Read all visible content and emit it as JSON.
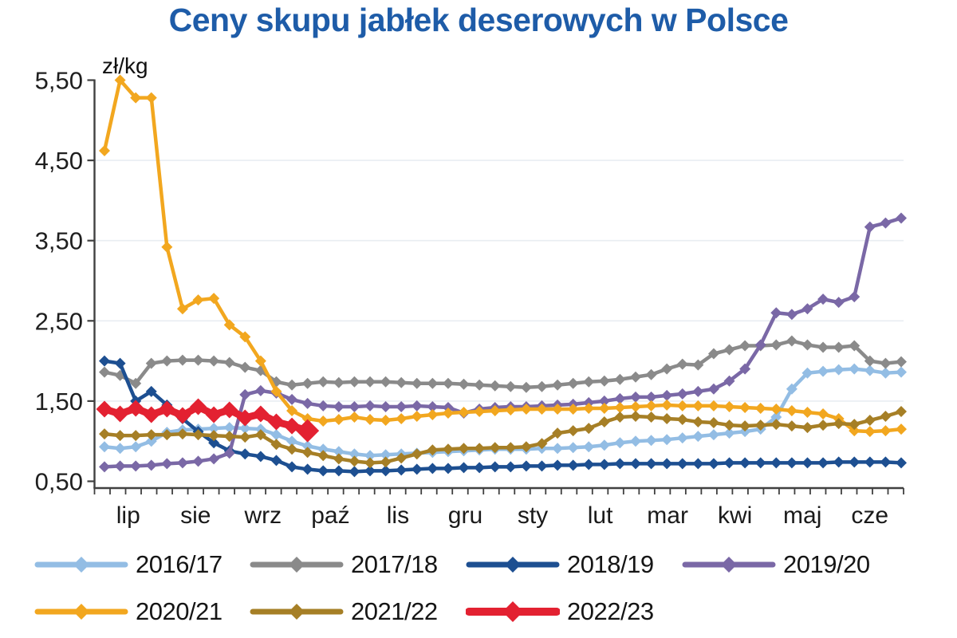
{
  "chart": {
    "title": "Ceny skupu jabłek deserowych w Polsce",
    "unit_label": "zł/kg"
  },
  "chart_data": {
    "type": "line",
    "title": "Ceny skupu jabłek deserowych w Polsce",
    "ylabel": "zł/kg",
    "xlabel": "",
    "ylim": [
      0.5,
      5.5
    ],
    "grid": "faint horizontal gridlines at 1.50, 2.50, 3.50, 4.50",
    "x_resolution": "weekly points across a July-June season (52 weeks)",
    "x_categories": [
      "lip",
      "sie",
      "wrz",
      "paź",
      "lis",
      "gru",
      "sty",
      "lut",
      "mar",
      "kwi",
      "maj",
      "cze"
    ],
    "weeks_per_month": [
      4,
      5,
      4,
      4,
      5,
      4,
      4,
      5,
      4,
      4,
      5,
      4
    ],
    "y_ticks": [
      {
        "value": 0.5,
        "label": "0,50"
      },
      {
        "value": 1.5,
        "label": "1,50"
      },
      {
        "value": 2.5,
        "label": "2,50"
      },
      {
        "value": 3.5,
        "label": "3,50"
      },
      {
        "value": 4.5,
        "label": "4,50"
      },
      {
        "value": 5.5,
        "label": "5,50"
      }
    ],
    "legend_position": "bottom, two rows",
    "legend_rows": [
      [
        "2016/17",
        "2017/18",
        "2018/19",
        "2019/20"
      ],
      [
        "2020/21",
        "2021/22",
        "2022/23"
      ]
    ],
    "series": [
      {
        "name": "2016/17",
        "color": "#93BDE4",
        "line_width": 4.5,
        "marker": "diamond",
        "values": [
          0.93,
          0.91,
          0.93,
          1.0,
          1.11,
          1.14,
          1.15,
          1.16,
          1.17,
          1.16,
          1.15,
          1.08,
          1.0,
          0.94,
          0.9,
          0.87,
          0.84,
          0.82,
          0.83,
          0.84,
          0.85,
          0.86,
          0.87,
          0.88,
          0.89,
          0.9,
          0.9,
          0.9,
          0.91,
          0.91,
          0.92,
          0.93,
          0.95,
          0.98,
          1.0,
          1.01,
          1.02,
          1.04,
          1.06,
          1.08,
          1.1,
          1.12,
          1.15,
          1.3,
          1.65,
          1.85,
          1.87,
          1.89,
          1.9,
          1.88,
          1.85,
          1.86
        ]
      },
      {
        "name": "2017/18",
        "color": "#8A8A8A",
        "line_width": 4.5,
        "marker": "diamond",
        "values": [
          1.86,
          1.82,
          1.72,
          1.97,
          2.0,
          2.01,
          2.01,
          2.0,
          1.98,
          1.92,
          1.88,
          1.74,
          1.7,
          1.72,
          1.74,
          1.73,
          1.74,
          1.74,
          1.74,
          1.73,
          1.72,
          1.72,
          1.72,
          1.71,
          1.7,
          1.69,
          1.68,
          1.67,
          1.68,
          1.7,
          1.72,
          1.74,
          1.75,
          1.77,
          1.8,
          1.83,
          1.9,
          1.96,
          1.95,
          2.09,
          2.14,
          2.19,
          2.19,
          2.2,
          2.25,
          2.2,
          2.17,
          2.17,
          2.19,
          2.0,
          1.97,
          1.99
        ]
      },
      {
        "name": "2018/19",
        "color": "#1D4F91",
        "line_width": 4.5,
        "marker": "diamond",
        "values": [
          2.0,
          1.97,
          1.5,
          1.62,
          1.45,
          1.28,
          1.12,
          0.98,
          0.88,
          0.84,
          0.81,
          0.76,
          0.68,
          0.65,
          0.63,
          0.63,
          0.62,
          0.63,
          0.63,
          0.64,
          0.65,
          0.66,
          0.66,
          0.67,
          0.67,
          0.68,
          0.68,
          0.69,
          0.69,
          0.7,
          0.7,
          0.71,
          0.71,
          0.72,
          0.72,
          0.72,
          0.72,
          0.72,
          0.72,
          0.72,
          0.73,
          0.73,
          0.73,
          0.73,
          0.73,
          0.73,
          0.73,
          0.74,
          0.74,
          0.74,
          0.74,
          0.73
        ]
      },
      {
        "name": "2019/20",
        "color": "#7A68A6",
        "line_width": 4.5,
        "marker": "diamond",
        "values": [
          0.68,
          0.69,
          0.69,
          0.7,
          0.72,
          0.73,
          0.75,
          0.78,
          0.85,
          1.58,
          1.63,
          1.6,
          1.52,
          1.47,
          1.44,
          1.43,
          1.43,
          1.44,
          1.43,
          1.43,
          1.44,
          1.43,
          1.42,
          1.35,
          1.4,
          1.42,
          1.43,
          1.43,
          1.44,
          1.45,
          1.46,
          1.48,
          1.5,
          1.53,
          1.55,
          1.55,
          1.57,
          1.59,
          1.62,
          1.65,
          1.75,
          1.9,
          2.2,
          2.6,
          2.58,
          2.65,
          2.77,
          2.73,
          2.8,
          3.67,
          3.72,
          3.78
        ]
      },
      {
        "name": "2020/21",
        "color": "#F2A71F",
        "line_width": 4.5,
        "marker": "diamond",
        "values": [
          4.62,
          5.5,
          5.28,
          5.28,
          3.42,
          2.65,
          2.76,
          2.78,
          2.45,
          2.3,
          2.0,
          1.62,
          1.38,
          1.28,
          1.25,
          1.27,
          1.3,
          1.27,
          1.26,
          1.28,
          1.31,
          1.33,
          1.35,
          1.36,
          1.37,
          1.38,
          1.39,
          1.4,
          1.4,
          1.4,
          1.4,
          1.41,
          1.41,
          1.42,
          1.43,
          1.44,
          1.45,
          1.44,
          1.44,
          1.44,
          1.43,
          1.42,
          1.41,
          1.4,
          1.38,
          1.36,
          1.34,
          1.28,
          1.13,
          1.12,
          1.13,
          1.15
        ]
      },
      {
        "name": "2021/22",
        "color": "#A67F26",
        "line_width": 4.5,
        "marker": "diamond",
        "values": [
          1.09,
          1.07,
          1.07,
          1.08,
          1.08,
          1.09,
          1.08,
          1.07,
          1.06,
          1.05,
          1.08,
          0.96,
          0.9,
          0.86,
          0.82,
          0.78,
          0.75,
          0.73,
          0.74,
          0.79,
          0.84,
          0.89,
          0.9,
          0.91,
          0.91,
          0.92,
          0.92,
          0.93,
          0.97,
          1.1,
          1.13,
          1.16,
          1.24,
          1.3,
          1.31,
          1.3,
          1.28,
          1.27,
          1.24,
          1.23,
          1.2,
          1.19,
          1.2,
          1.21,
          1.19,
          1.17,
          1.2,
          1.22,
          1.21,
          1.26,
          1.31,
          1.37
        ]
      },
      {
        "name": "2022/23",
        "color": "#E32131",
        "line_width": 9,
        "marker": "diamond",
        "endpoint_emphasis": true,
        "values": [
          1.4,
          1.34,
          1.41,
          1.33,
          1.4,
          1.32,
          1.43,
          1.33,
          1.39,
          1.29,
          1.34,
          1.24,
          1.19,
          1.13
        ]
      }
    ],
    "colors": {
      "title": "#1E5CA8",
      "axis": "#404040",
      "tick_label": "#1f1f1f",
      "gridline": "#E9EDF2"
    }
  }
}
